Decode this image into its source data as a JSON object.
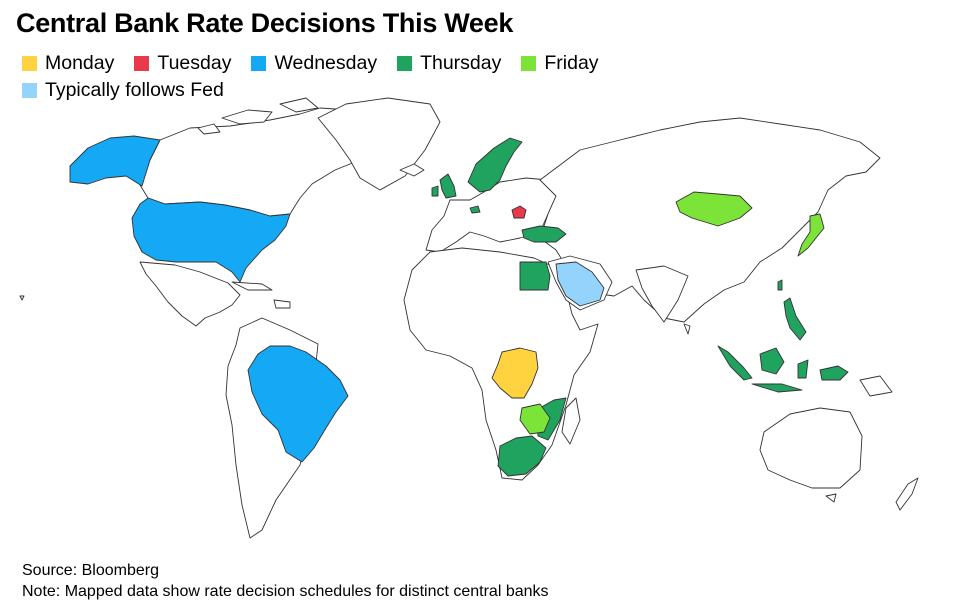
{
  "title": "Central Bank Rate Decisions This Week",
  "legend": [
    {
      "label": "Monday",
      "color": "#ffd23f"
    },
    {
      "label": "Tuesday",
      "color": "#e83a4a"
    },
    {
      "label": "Wednesday",
      "color": "#14a8f5"
    },
    {
      "label": "Thursday",
      "color": "#1fa35f"
    },
    {
      "label": "Friday",
      "color": "#7ce438"
    },
    {
      "label": "Typically follows Fed",
      "color": "#94d3fb"
    }
  ],
  "map": {
    "land_color": "#ffffff",
    "border_color": "#333333",
    "regions": [
      {
        "name": "United States",
        "category": "Wednesday"
      },
      {
        "name": "Brazil",
        "category": "Wednesday"
      },
      {
        "name": "Democratic Republic of the Congo",
        "category": "Monday"
      },
      {
        "name": "Romania",
        "category": "Tuesday"
      },
      {
        "name": "United Kingdom",
        "category": "Thursday"
      },
      {
        "name": "Norway",
        "category": "Thursday"
      },
      {
        "name": "Sweden",
        "category": "Thursday"
      },
      {
        "name": "Switzerland",
        "category": "Thursday"
      },
      {
        "name": "Turkey",
        "category": "Thursday"
      },
      {
        "name": "Egypt",
        "category": "Thursday"
      },
      {
        "name": "South Africa",
        "category": "Thursday"
      },
      {
        "name": "Mozambique",
        "category": "Thursday"
      },
      {
        "name": "Philippines",
        "category": "Thursday"
      },
      {
        "name": "Indonesia",
        "category": "Thursday"
      },
      {
        "name": "Taiwan",
        "category": "Thursday"
      },
      {
        "name": "Japan",
        "category": "Friday"
      },
      {
        "name": "Mongolia",
        "category": "Friday"
      },
      {
        "name": "Malawi",
        "category": "Friday"
      },
      {
        "name": "Zimbabwe",
        "category": "Friday"
      },
      {
        "name": "Saudi Arabia",
        "category": "Typically follows Fed"
      }
    ]
  },
  "footer": {
    "source": "Source: Bloomberg",
    "note": "Note: Mapped data show rate decision schedules for distinct central banks"
  }
}
